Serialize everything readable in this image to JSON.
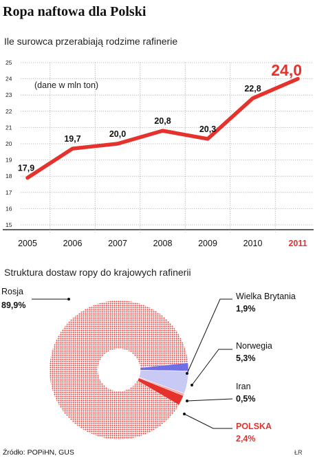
{
  "header": {
    "title": "Ropa naftowa dla Polski",
    "subtitle": "Ile surowca przerabiają rodzime rafinerie"
  },
  "pie_section": {
    "subtitle": "Struktura dostaw ropy do krajowych rafinerii"
  },
  "footer": {
    "source": "Źródło: POPiHN, GUS",
    "credit": "ŁR"
  },
  "colors": {
    "line": "#e5322d",
    "highlight": "#e5322d",
    "russia_dots": "#e5322d",
    "uk": "#6e6ee6",
    "norway": "#c9c9f5",
    "iran": "#f3a3a3",
    "poland": "#e5322d"
  },
  "chart_data": [
    {
      "type": "line",
      "annotation": "(dane w mln ton)",
      "x": [
        "2005",
        "2006",
        "2007",
        "2008",
        "2009",
        "2010",
        "2011"
      ],
      "series": [
        {
          "values": [
            17.9,
            19.7,
            20.0,
            20.8,
            20.3,
            22.8,
            24.0
          ]
        }
      ],
      "value_labels": [
        "17,9",
        "19,7",
        "20,0",
        "20,8",
        "20,3",
        "22,8",
        "24,0"
      ],
      "highlight_index": 6,
      "yticks": [
        "15",
        "16",
        "17",
        "18",
        "19",
        "20",
        "21",
        "22",
        "23",
        "24",
        "25"
      ],
      "ylim": [
        15,
        25
      ],
      "grid": true
    },
    {
      "type": "pie",
      "style": "donut",
      "slices": [
        {
          "label": "Rosja",
          "value_label": "89,9%",
          "value": 89.9
        },
        {
          "label": "Wielka Brytania",
          "value_label": "1,9%",
          "value": 1.9
        },
        {
          "label": "Norwegia",
          "value_label": "5,3%",
          "value": 5.3
        },
        {
          "label": "Iran",
          "value_label": "0,5%",
          "value": 0.5
        },
        {
          "label": "POLSKA",
          "value_label": "2,4%",
          "value": 2.4
        }
      ]
    }
  ]
}
